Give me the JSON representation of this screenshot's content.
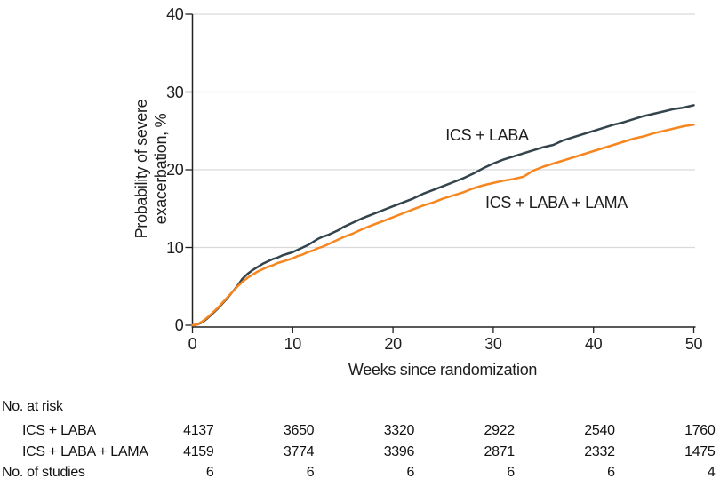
{
  "figure": {
    "curve_labels": {
      "ics_laba": "ICS + LABA",
      "ics_laba_lama": "ICS + LABA + LAMA"
    }
  },
  "risk_table": {
    "header": "No. at risk",
    "rows": [
      {
        "label": "ICS + LABA",
        "values": [
          "4137",
          "3650",
          "3320",
          "2922",
          "2540",
          "1760"
        ]
      },
      {
        "label": "ICS + LABA + LAMA",
        "values": [
          "4159",
          "3774",
          "3396",
          "2871",
          "2332",
          "1475"
        ]
      }
    ],
    "studies_row": {
      "label": "No. of studies",
      "values": [
        "6",
        "6",
        "6",
        "6",
        "6",
        "4"
      ]
    }
  },
  "chart_data": {
    "type": "line",
    "title": "",
    "xlabel": "Weeks since randomization",
    "ylabel": "Probability of severe exacerbation, %",
    "ylabel_lines": [
      "Probability of severe",
      "exacerbation, %"
    ],
    "xlim": [
      0,
      50
    ],
    "ylim": [
      0,
      40
    ],
    "x_ticks": [
      0,
      10,
      20,
      30,
      40,
      50
    ],
    "y_ticks": [
      0,
      10,
      20,
      30,
      40
    ],
    "grid": "horizontal-only",
    "legend_position": "inline-curve-labels",
    "colors": {
      "ics_laba": "#33444D",
      "ics_laba_lama": "#F6861F",
      "gridline": "#DADADA",
      "axis": "#222222",
      "text": "#1E1E1E"
    },
    "series": [
      {
        "name": "ICS + LABA",
        "color_key": "ics_laba",
        "x": [
          0,
          0.5,
          1,
          1.5,
          2,
          2.5,
          3,
          3.5,
          4,
          4.5,
          5,
          5.5,
          6,
          6.5,
          7,
          7.5,
          8,
          8.5,
          9,
          9.5,
          10,
          10.5,
          11,
          11.5,
          12,
          12.5,
          13,
          13.5,
          14,
          14.5,
          15,
          16,
          17,
          18,
          19,
          20,
          21,
          22,
          23,
          24,
          25,
          26,
          27,
          28,
          29,
          30,
          31,
          32,
          33,
          34,
          35,
          36,
          37,
          38,
          39,
          40,
          41,
          42,
          43,
          44,
          45,
          46,
          47,
          48,
          49,
          50
        ],
        "y": [
          0,
          0.1,
          0.4,
          0.9,
          1.5,
          2.1,
          2.8,
          3.5,
          4.3,
          5.1,
          6.0,
          6.6,
          7.1,
          7.5,
          7.9,
          8.2,
          8.5,
          8.7,
          9.0,
          9.2,
          9.4,
          9.7,
          10.0,
          10.3,
          10.7,
          11.1,
          11.4,
          11.6,
          11.9,
          12.2,
          12.6,
          13.2,
          13.8,
          14.3,
          14.8,
          15.3,
          15.8,
          16.3,
          16.9,
          17.4,
          17.9,
          18.4,
          18.9,
          19.5,
          20.2,
          20.8,
          21.3,
          21.7,
          22.1,
          22.5,
          22.9,
          23.2,
          23.8,
          24.2,
          24.6,
          25.0,
          25.4,
          25.8,
          26.1,
          26.5,
          26.9,
          27.2,
          27.5,
          27.8,
          28.0,
          28.3
        ]
      },
      {
        "name": "ICS + LABA + LAMA",
        "color_key": "ics_laba_lama",
        "x": [
          0,
          0.5,
          1,
          1.5,
          2,
          2.5,
          3,
          3.5,
          4,
          4.5,
          5,
          5.5,
          6,
          6.5,
          7,
          7.5,
          8,
          8.5,
          9,
          9.5,
          10,
          10.5,
          11,
          11.5,
          12,
          12.5,
          13,
          13.5,
          14,
          14.5,
          15,
          16,
          17,
          18,
          19,
          20,
          21,
          22,
          23,
          24,
          25,
          26,
          27,
          28,
          29,
          30,
          31,
          32,
          33,
          34,
          35,
          36,
          37,
          38,
          39,
          40,
          41,
          42,
          43,
          44,
          45,
          46,
          47,
          48,
          49,
          50
        ],
        "y": [
          0,
          0.1,
          0.5,
          1.0,
          1.6,
          2.2,
          2.9,
          3.6,
          4.3,
          5.0,
          5.6,
          6.1,
          6.5,
          6.9,
          7.2,
          7.5,
          7.7,
          8.0,
          8.2,
          8.4,
          8.6,
          8.9,
          9.1,
          9.4,
          9.6,
          9.9,
          10.1,
          10.4,
          10.7,
          11.0,
          11.3,
          11.8,
          12.4,
          12.9,
          13.4,
          13.9,
          14.4,
          14.9,
          15.4,
          15.8,
          16.3,
          16.7,
          17.1,
          17.6,
          18.0,
          18.3,
          18.6,
          18.8,
          19.1,
          19.9,
          20.4,
          20.8,
          21.2,
          21.6,
          22.0,
          22.4,
          22.8,
          23.2,
          23.6,
          24.0,
          24.3,
          24.7,
          25.0,
          25.3,
          25.6,
          25.8
        ]
      }
    ]
  }
}
